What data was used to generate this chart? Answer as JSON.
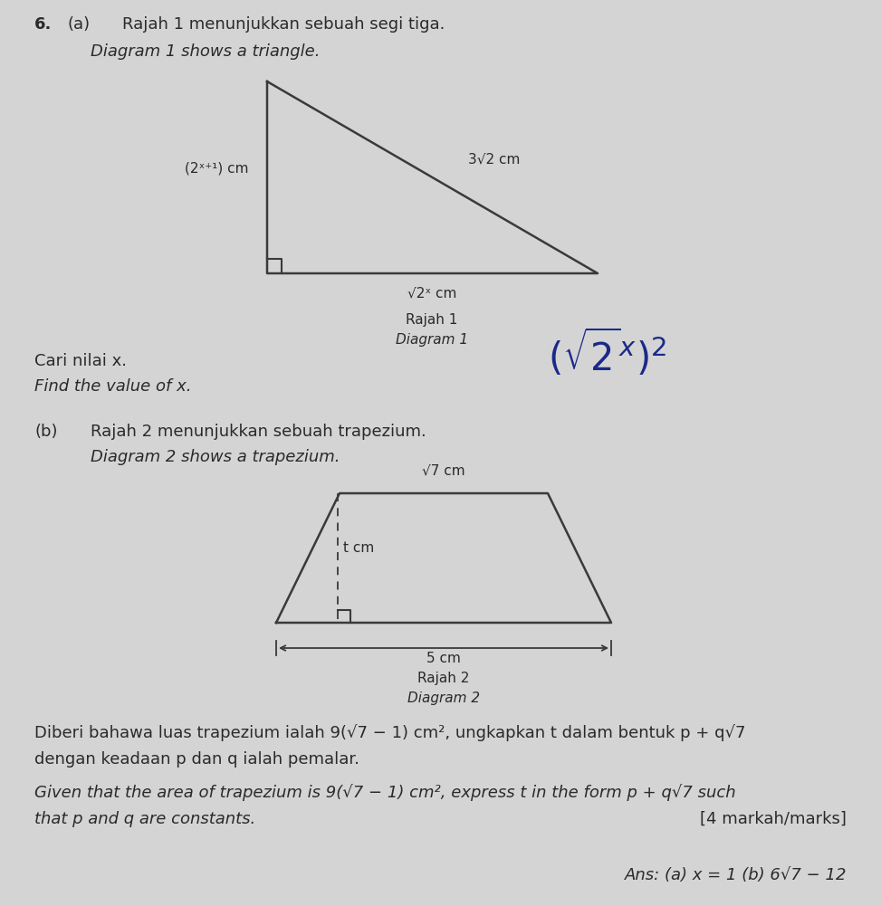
{
  "bg_color": "#c8c8c8",
  "panel_color": "#e8e8e8",
  "text_color": "#2a2a2a",
  "line_color": "#3a3a3a",
  "question_number": "6.",
  "part_a_label": "(a)",
  "part_a_text1": "Rajah 1 menunjukkan sebuah segi tiga.",
  "part_a_text2": "Diagram 1 shows a triangle.",
  "label_left": "(2ˣ⁺¹) cm",
  "label_hyp": "3√2 cm",
  "label_bottom": "√2ˣ cm",
  "diagram1_label": "Rajah 1",
  "diagram1_sublabel": "Diagram 1",
  "cari_text": "Cari nilai x.",
  "find_text": "Find the value of x.",
  "part_b_label": "(b)",
  "part_b_text1": "Rajah 2 menunjukkan sebuah trapezium.",
  "part_b_text2": "Diagram 2 shows a trapezium.",
  "trap_top_label": "√7 cm",
  "trap_height_label": "t cm",
  "trap_bottom_label": "5 cm",
  "diagram2_label": "Rajah 2",
  "diagram2_sublabel": "Diagram 2",
  "malay_text1": "Diberi bahawa luas trapezium ialah 9(√7 − 1) cm², ungkapkan t dalam bentuk p + q√7",
  "malay_text2": "dengan keadaan p dan q ialah pemalar.",
  "english_text1": "Given that the area of trapezium is 9(√7 − 1) cm², express t in the form p + q√7 such",
  "english_text2": "that p and q are constants.",
  "marks_text": "[4 markah/marks]",
  "ans_text": "Ans: (a) x = 1 (b) 6√7 − 12",
  "handwritten_color": "#1a2a8a"
}
